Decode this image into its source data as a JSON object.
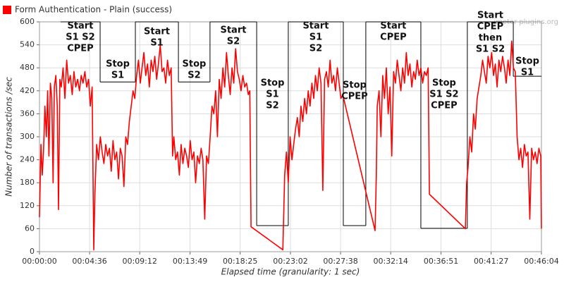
{
  "chart_data": {
    "type": "line",
    "watermark": "jmeter-plugins.org",
    "xlabel": "Elapsed time (granularity: 1 sec)",
    "ylabel": "Number of transactions /sec",
    "xlim": [
      0,
      2764
    ],
    "ylim": [
      0,
      600
    ],
    "yticks": [
      0,
      60,
      120,
      180,
      240,
      300,
      360,
      420,
      480,
      540,
      600
    ],
    "xticks": [
      {
        "value": 0,
        "label": "00:00:00"
      },
      {
        "value": 276,
        "label": "00:04:36"
      },
      {
        "value": 552,
        "label": "00:09:12"
      },
      {
        "value": 829,
        "label": "00:13:49"
      },
      {
        "value": 1105,
        "label": "00:18:25"
      },
      {
        "value": 1382,
        "label": "00:23:02"
      },
      {
        "value": 1658,
        "label": "00:27:38"
      },
      {
        "value": 1934,
        "label": "00:32:14"
      },
      {
        "value": 2211,
        "label": "00:36:51"
      },
      {
        "value": 2487,
        "label": "00:41:27"
      },
      {
        "value": 2764,
        "label": "00:46:04"
      }
    ],
    "grid": true,
    "x": [
      0,
      8,
      15,
      22,
      30,
      38,
      45,
      52,
      60,
      68,
      75,
      82,
      90,
      98,
      105,
      112,
      120,
      130,
      140,
      150,
      160,
      170,
      180,
      190,
      200,
      210,
      220,
      230,
      240,
      250,
      260,
      270,
      280,
      290,
      299,
      305,
      315,
      325,
      335,
      345,
      355,
      365,
      375,
      385,
      395,
      405,
      415,
      425,
      435,
      445,
      455,
      465,
      475,
      485,
      495,
      505,
      515,
      525,
      535,
      545,
      555,
      565,
      575,
      585,
      595,
      605,
      615,
      625,
      635,
      645,
      655,
      665,
      675,
      685,
      695,
      705,
      715,
      725,
      733,
      740,
      750,
      760,
      770,
      780,
      790,
      800,
      810,
      820,
      830,
      840,
      850,
      860,
      870,
      880,
      890,
      900,
      910,
      920,
      930,
      940,
      950,
      960,
      970,
      980,
      990,
      1000,
      1010,
      1020,
      1030,
      1040,
      1050,
      1060,
      1070,
      1080,
      1090,
      1100,
      1110,
      1120,
      1130,
      1140,
      1150,
      1158,
      1165,
      1340,
      1350,
      1360,
      1370,
      1380,
      1390,
      1400,
      1410,
      1420,
      1430,
      1440,
      1450,
      1460,
      1470,
      1480,
      1490,
      1500,
      1510,
      1520,
      1530,
      1540,
      1550,
      1560,
      1570,
      1580,
      1590,
      1600,
      1610,
      1620,
      1630,
      1640,
      1650,
      1660,
      1670,
      1848,
      1855,
      1860,
      1870,
      1880,
      1890,
      1900,
      1910,
      1920,
      1930,
      1940,
      1950,
      1960,
      1970,
      1980,
      1990,
      2000,
      2010,
      2020,
      2030,
      2040,
      2050,
      2060,
      2070,
      2080,
      2090,
      2100,
      2110,
      2120,
      2130,
      2140,
      2147,
      2345,
      2352,
      2360,
      2370,
      2380,
      2390,
      2400,
      2410,
      2420,
      2430,
      2440,
      2450,
      2460,
      2470,
      2480,
      2490,
      2500,
      2510,
      2520,
      2530,
      2540,
      2550,
      2560,
      2570,
      2580,
      2590,
      2600,
      2610,
      2620,
      2630,
      2640,
      2650,
      2660,
      2670,
      2680,
      2690,
      2700,
      2710,
      2720,
      2730,
      2740,
      2750,
      2760,
      2764
    ],
    "series": [
      {
        "name": "Form Authentication - Plain (success)",
        "color": "#ff0000",
        "values": [
          90,
          280,
          200,
          260,
          380,
          300,
          420,
          250,
          440,
          400,
          180,
          430,
          460,
          380,
          110,
          450,
          430,
          480,
          400,
          500,
          440,
          460,
          410,
          470,
          430,
          450,
          420,
          460,
          440,
          470,
          430,
          450,
          380,
          430,
          5,
          150,
          280,
          240,
          300,
          260,
          230,
          280,
          250,
          270,
          210,
          290,
          240,
          260,
          190,
          270,
          250,
          170,
          300,
          280,
          340,
          380,
          420,
          400,
          460,
          500,
          440,
          480,
          520,
          460,
          490,
          430,
          500,
          470,
          510,
          450,
          490,
          540,
          470,
          480,
          440,
          500,
          460,
          480,
          250,
          300,
          240,
          260,
          200,
          280,
          230,
          270,
          250,
          220,
          290,
          240,
          260,
          180,
          250,
          230,
          270,
          240,
          85,
          250,
          230,
          300,
          380,
          360,
          420,
          300,
          450,
          400,
          480,
          430,
          520,
          460,
          410,
          480,
          440,
          530,
          470,
          450,
          420,
          460,
          430,
          440,
          410,
          420,
          65,
          5,
          200,
          260,
          180,
          300,
          240,
          280,
          320,
          350,
          300,
          380,
          340,
          400,
          360,
          420,
          380,
          440,
          400,
          460,
          420,
          480,
          440,
          160,
          450,
          470,
          430,
          500,
          440,
          460,
          420,
          480,
          440,
          400,
          410,
          55,
          200,
          380,
          420,
          300,
          460,
          400,
          480,
          360,
          430,
          250,
          470,
          440,
          500,
          460,
          420,
          480,
          440,
          520,
          460,
          490,
          430,
          470,
          450,
          500,
          460,
          480,
          440,
          470,
          460,
          480,
          150,
          60,
          180,
          220,
          300,
          260,
          360,
          320,
          400,
          430,
          460,
          500,
          470,
          440,
          510,
          480,
          520,
          460,
          490,
          430,
          500,
          470,
          510,
          480,
          440,
          500,
          460,
          550,
          480,
          470,
          300,
          240,
          270,
          220,
          280,
          250,
          260,
          85,
          270,
          240,
          260,
          230,
          270,
          250,
          60
        ]
      }
    ],
    "phases": [
      {
        "start": 116,
        "end": 334,
        "level": 600,
        "label": [
          "Start",
          "S1 S2",
          "CPEP"
        ]
      },
      {
        "start": 334,
        "end": 528,
        "level": 443,
        "label": [
          "Stop",
          "S1"
        ]
      },
      {
        "start": 528,
        "end": 765,
        "level": 600,
        "label": [
          "Start",
          "S1"
        ]
      },
      {
        "start": 765,
        "end": 939,
        "level": 443,
        "label": [
          "Stop",
          "S2"
        ]
      },
      {
        "start": 939,
        "end": 1196,
        "level": 600,
        "label": [
          "Start",
          "S2"
        ]
      },
      {
        "start": 1196,
        "end": 1370,
        "level": 68,
        "label": [
          "Stop",
          "S1",
          "S2"
        ]
      },
      {
        "start": 1370,
        "end": 1673,
        "level": 600,
        "label": [
          "Start",
          "S1",
          "S2"
        ]
      },
      {
        "start": 1673,
        "end": 1797,
        "level": 68,
        "label": [
          "Stop",
          "CPEP"
        ]
      },
      {
        "start": 1797,
        "end": 2100,
        "level": 600,
        "label": [
          "Start",
          "CPEP"
        ]
      },
      {
        "start": 2100,
        "end": 2356,
        "level": 61,
        "label": [
          "Stop",
          "S1 S2",
          "CPEP"
        ]
      },
      {
        "start": 2356,
        "end": 2609,
        "level": 600,
        "label": [
          "Start",
          "CPEP",
          "then",
          "S1 S2"
        ]
      },
      {
        "start": 2609,
        "end": 2764,
        "level": 458,
        "label": [
          "Stop",
          "S1"
        ]
      }
    ]
  }
}
